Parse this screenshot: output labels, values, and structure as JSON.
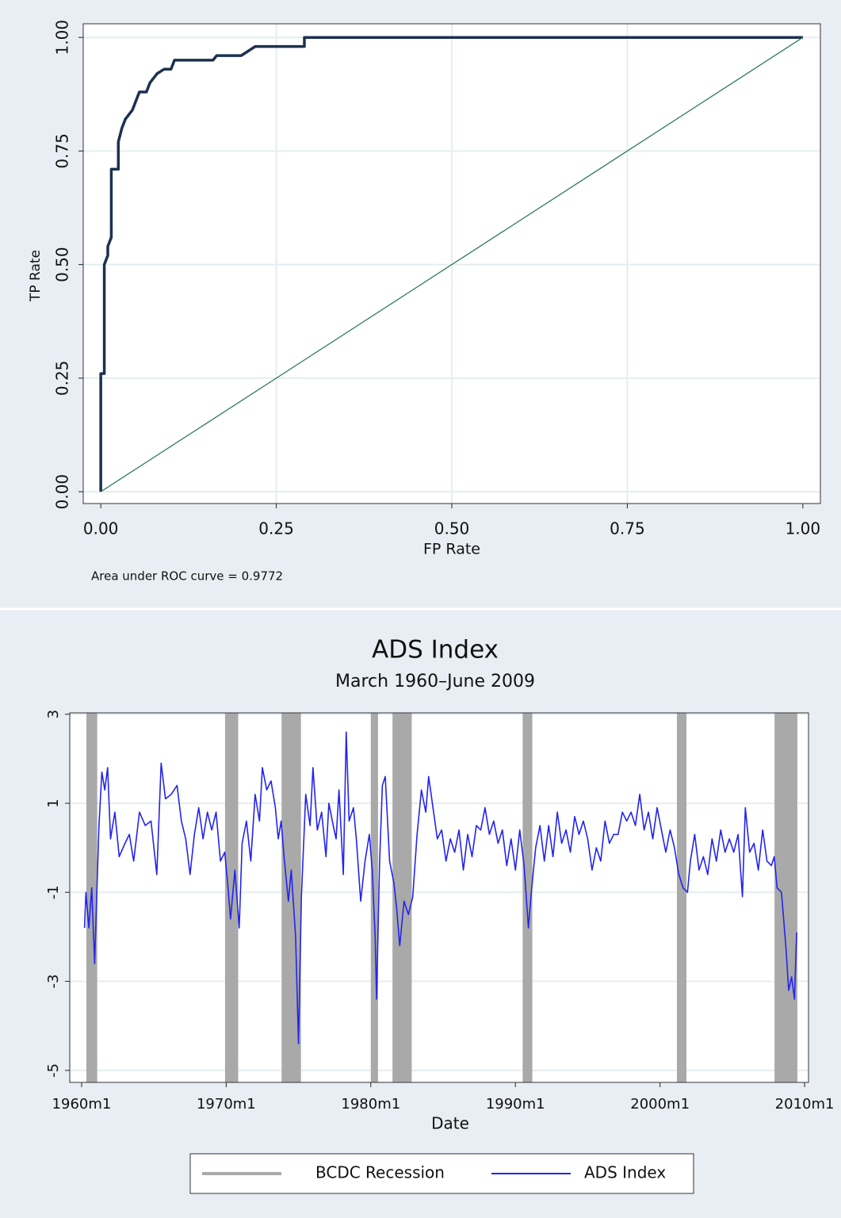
{
  "chart_data": [
    {
      "type": "line",
      "x_label": "FP Rate",
      "y_label": "TP Rate",
      "annotation": "Area under ROC curve = 0.9772",
      "xlim": [
        -0.025,
        1.025
      ],
      "ylim": [
        -0.026,
        1.03
      ],
      "xticks": [
        {
          "value": 0,
          "label": "0.00"
        },
        {
          "value": 0.25,
          "label": "0.25"
        },
        {
          "value": 0.5,
          "label": "0.50"
        },
        {
          "value": 0.75,
          "label": "0.75"
        },
        {
          "value": 1,
          "label": "1.00"
        }
      ],
      "yticks": [
        {
          "value": 0,
          "label": "0.00"
        },
        {
          "value": 0.25,
          "label": "0.25"
        },
        {
          "value": 0.5,
          "label": "0.50"
        },
        {
          "value": 0.75,
          "label": "0.75"
        },
        {
          "value": 1,
          "label": "1.00"
        }
      ],
      "grid": true,
      "series": [
        {
          "color": "#1c3150",
          "width": 3.5,
          "x": [
            0,
            0,
            0.005,
            0.005,
            0.01,
            0.01,
            0.015,
            0.015,
            0.025,
            0.025,
            0.03,
            0.035,
            0.045,
            0.05,
            0.055,
            0.065,
            0.07,
            0.08,
            0.09,
            0.1,
            0.105,
            0.16,
            0.165,
            0.2,
            0.21,
            0.22,
            0.29,
            0.29,
            1
          ],
          "values": [
            0,
            0.26,
            0.26,
            0.5,
            0.52,
            0.54,
            0.56,
            0.71,
            0.71,
            0.77,
            0.8,
            0.82,
            0.84,
            0.86,
            0.88,
            0.88,
            0.9,
            0.92,
            0.93,
            0.93,
            0.95,
            0.95,
            0.96,
            0.96,
            0.97,
            0.98,
            0.98,
            1,
            1
          ]
        },
        {
          "color": "#2e7d5b",
          "width": 1.3,
          "x": [
            0,
            1
          ],
          "values": [
            0,
            1
          ]
        }
      ]
    },
    {
      "type": "line",
      "title": "ADS Index",
      "subtitle": "March 1960–June 2009",
      "x_label": "Date",
      "xlim": [
        1959.18,
        2010.27
      ],
      "ylim": [
        -5.27,
        3.03
      ],
      "xticks": [
        {
          "value": 1960,
          "label": "1960m1"
        },
        {
          "value": 1970,
          "label": "1970m1"
        },
        {
          "value": 1980,
          "label": "1980m1"
        },
        {
          "value": 1990,
          "label": "1990m1"
        },
        {
          "value": 2000,
          "label": "2000m1"
        },
        {
          "value": 2010,
          "label": "2010m1"
        }
      ],
      "yticks": [
        -5,
        -3,
        -1,
        1,
        3
      ],
      "grid": true,
      "legend": "bottom",
      "x": [
        1960.2,
        1960.3,
        1960.5,
        1960.7,
        1960.9,
        1961.2,
        1961.4,
        1961.6,
        1961.8,
        1962.0,
        1962.3,
        1962.6,
        1963.0,
        1963.3,
        1963.6,
        1964.0,
        1964.4,
        1964.8,
        1965.2,
        1965.5,
        1965.8,
        1966.2,
        1966.6,
        1966.9,
        1967.2,
        1967.5,
        1967.8,
        1968.1,
        1968.4,
        1968.7,
        1969.0,
        1969.3,
        1969.6,
        1969.9,
        1970.1,
        1970.3,
        1970.6,
        1970.9,
        1971.1,
        1971.4,
        1971.7,
        1972.0,
        1972.3,
        1972.5,
        1972.8,
        1973.1,
        1973.4,
        1973.6,
        1973.8,
        1974.0,
        1974.3,
        1974.5,
        1974.8,
        1975.0,
        1975.2,
        1975.5,
        1975.8,
        1976.0,
        1976.3,
        1976.6,
        1976.9,
        1977.1,
        1977.4,
        1977.6,
        1977.8,
        1978.1,
        1978.3,
        1978.5,
        1978.8,
        1979.0,
        1979.3,
        1979.6,
        1979.9,
        1980.1,
        1980.3,
        1980.4,
        1980.6,
        1980.8,
        1981.0,
        1981.3,
        1981.6,
        1981.8,
        1982.0,
        1982.3,
        1982.6,
        1982.9,
        1983.2,
        1983.5,
        1983.8,
        1984.0,
        1984.3,
        1984.6,
        1984.9,
        1985.2,
        1985.5,
        1985.8,
        1986.1,
        1986.4,
        1986.7,
        1987.0,
        1987.3,
        1987.6,
        1987.9,
        1988.2,
        1988.5,
        1988.8,
        1989.1,
        1989.4,
        1989.7,
        1990.0,
        1990.3,
        1990.6,
        1990.9,
        1991.1,
        1991.4,
        1991.7,
        1992.0,
        1992.3,
        1992.6,
        1992.9,
        1993.2,
        1993.5,
        1993.8,
        1994.1,
        1994.4,
        1994.7,
        1995.0,
        1995.3,
        1995.6,
        1995.9,
        1996.2,
        1996.5,
        1996.8,
        1997.1,
        1997.4,
        1997.7,
        1998.0,
        1998.3,
        1998.6,
        1998.9,
        1999.2,
        1999.5,
        1999.8,
        2000.1,
        2000.4,
        2000.7,
        2001.0,
        2001.3,
        2001.6,
        2001.9,
        2002.1,
        2002.4,
        2002.7,
        2003.0,
        2003.3,
        2003.6,
        2003.9,
        2004.2,
        2004.5,
        2004.8,
        2005.1,
        2005.4,
        2005.7,
        2005.9,
        2006.2,
        2006.5,
        2006.8,
        2007.1,
        2007.4,
        2007.7,
        2007.9,
        2008.1,
        2008.4,
        2008.7,
        2008.9,
        2009.1,
        2009.3,
        2009.45
      ],
      "series": [
        {
          "name": "BCDC Recession",
          "color": "#a9a9a9",
          "periods": [
            [
              1960.33,
              1961.08
            ],
            [
              1969.92,
              1970.83
            ],
            [
              1973.83,
              1975.17
            ],
            [
              1980.0,
              1980.5
            ],
            [
              1981.5,
              1982.83
            ],
            [
              1990.5,
              1991.17
            ],
            [
              2001.17,
              2001.83
            ],
            [
              2007.92,
              2009.5
            ]
          ]
        },
        {
          "name": "ADS Index",
          "color": "#2424ee",
          "width": 1.6,
          "values": [
            -1.8,
            -1.0,
            -1.8,
            -0.9,
            -2.6,
            0.5,
            1.7,
            1.3,
            1.8,
            0.2,
            0.8,
            -0.2,
            0.1,
            0.3,
            -0.3,
            0.8,
            0.5,
            0.6,
            -0.6,
            1.9,
            1.1,
            1.2,
            1.4,
            0.6,
            0.2,
            -0.6,
            0.3,
            0.9,
            0.2,
            0.8,
            0.4,
            0.8,
            -0.3,
            -0.1,
            -0.8,
            -1.6,
            -0.5,
            -1.8,
            0.1,
            0.6,
            -0.3,
            1.2,
            0.6,
            1.8,
            1.3,
            1.5,
            0.9,
            0.2,
            0.6,
            -0.2,
            -1.2,
            -0.5,
            -2.0,
            -4.4,
            -1.1,
            1.2,
            0.5,
            1.8,
            0.4,
            0.8,
            -0.2,
            1.0,
            0.5,
            0.2,
            1.3,
            -0.6,
            2.6,
            0.6,
            0.9,
            0.2,
            -1.2,
            -0.3,
            0.3,
            -0.5,
            -2.0,
            -3.4,
            -0.4,
            1.4,
            1.6,
            -0.3,
            -0.8,
            -1.4,
            -2.2,
            -1.2,
            -1.5,
            -1.1,
            0.3,
            1.3,
            0.8,
            1.6,
            0.9,
            0.2,
            0.4,
            -0.3,
            0.2,
            -0.1,
            0.4,
            -0.5,
            0.3,
            -0.2,
            0.5,
            0.4,
            0.9,
            0.3,
            0.6,
            0.1,
            0.4,
            -0.4,
            0.2,
            -0.5,
            0.4,
            -0.4,
            -1.8,
            -1.0,
            0.0,
            0.5,
            -0.3,
            0.5,
            -0.2,
            0.8,
            0.1,
            0.4,
            -0.1,
            0.7,
            0.3,
            0.6,
            0.2,
            -0.5,
            0.0,
            -0.3,
            0.6,
            0.1,
            0.3,
            0.3,
            0.8,
            0.6,
            0.8,
            0.5,
            1.2,
            0.4,
            0.8,
            0.2,
            0.9,
            0.4,
            -0.1,
            0.4,
            0.0,
            -0.6,
            -0.9,
            -1.0,
            -0.3,
            0.3,
            -0.5,
            -0.2,
            -0.6,
            0.2,
            -0.3,
            0.4,
            -0.1,
            0.2,
            -0.1,
            0.3,
            -1.1,
            0.9,
            -0.1,
            0.1,
            -0.5,
            0.4,
            -0.3,
            -0.4,
            -0.2,
            -0.9,
            -1.0,
            -2.2,
            -3.2,
            -2.9,
            -3.4,
            -1.9
          ]
        }
      ]
    }
  ]
}
